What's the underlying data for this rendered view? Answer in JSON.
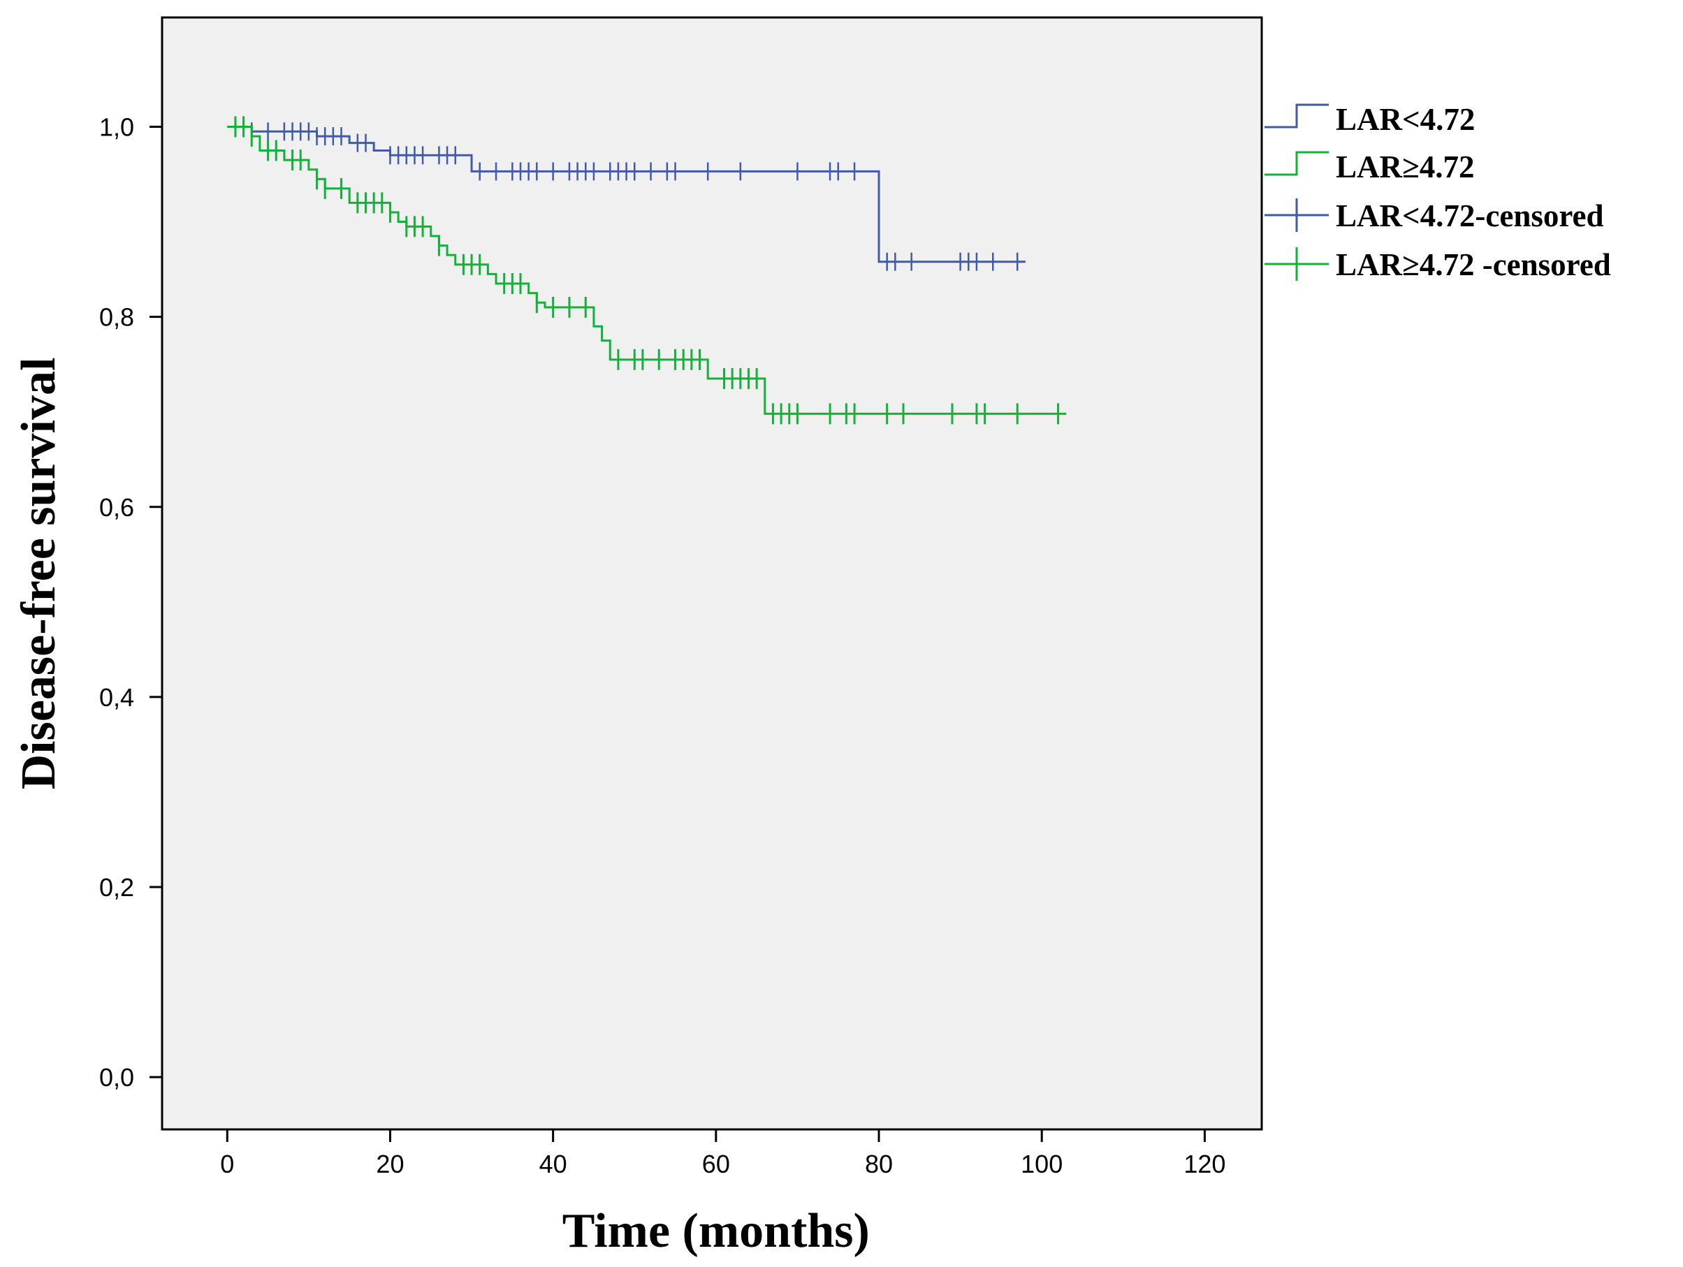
{
  "chart_data": {
    "type": "line",
    "subtype": "kaplan-meier",
    "title": "",
    "xlabel": "Time (months)",
    "ylabel": "Disease-free survival",
    "xlim": [
      -8,
      127
    ],
    "ylim": [
      -0.055,
      1.115
    ],
    "x_ticks": [
      0,
      20,
      40,
      60,
      80,
      100,
      120
    ],
    "x_tick_labels": [
      "0",
      "20",
      "40",
      "60",
      "80",
      "100",
      "120"
    ],
    "y_ticks": [
      0.0,
      0.2,
      0.4,
      0.6,
      0.8,
      1.0
    ],
    "y_tick_labels": [
      "0,0",
      "0,2",
      "0,4",
      "0,6",
      "0,8",
      "1,0"
    ],
    "grid": false,
    "legend_position": "right",
    "plot_background": "#f0f0f0",
    "series": [
      {
        "name": "LAR<4.72",
        "censored_name": "LAR<4.72-censored",
        "color": "#3f5aaa",
        "steps": [
          {
            "x": 0,
            "y": 1.0
          },
          {
            "x": 3,
            "y": 0.995
          },
          {
            "x": 11,
            "y": 0.99
          },
          {
            "x": 15,
            "y": 0.983
          },
          {
            "x": 18,
            "y": 0.975
          },
          {
            "x": 20,
            "y": 0.97
          },
          {
            "x": 30,
            "y": 0.953
          },
          {
            "x": 80,
            "y": 0.858
          }
        ],
        "end_x": 98,
        "censored_x": [
          1,
          2,
          3,
          5,
          7,
          8,
          9,
          10,
          11,
          12,
          13,
          14,
          16,
          17,
          20,
          21,
          22,
          23,
          24,
          26,
          27,
          28,
          31,
          33,
          35,
          36,
          37,
          38,
          40,
          42,
          43,
          44,
          45,
          47,
          48,
          49,
          50,
          52,
          54,
          55,
          59,
          63,
          70,
          74,
          75,
          77,
          81,
          82,
          84,
          90,
          91,
          92,
          94,
          97
        ]
      },
      {
        "name": "LAR≥4.72",
        "censored_name": "LAR≥4.72 -censored",
        "color": "#12b23a",
        "steps": [
          {
            "x": 0,
            "y": 1.0
          },
          {
            "x": 3,
            "y": 0.99
          },
          {
            "x": 4,
            "y": 0.975
          },
          {
            "x": 7,
            "y": 0.965
          },
          {
            "x": 10,
            "y": 0.955
          },
          {
            "x": 11,
            "y": 0.945
          },
          {
            "x": 12,
            "y": 0.935
          },
          {
            "x": 15,
            "y": 0.92
          },
          {
            "x": 20,
            "y": 0.91
          },
          {
            "x": 21,
            "y": 0.9
          },
          {
            "x": 22,
            "y": 0.895
          },
          {
            "x": 25,
            "y": 0.885
          },
          {
            "x": 26,
            "y": 0.875
          },
          {
            "x": 27,
            "y": 0.865
          },
          {
            "x": 28,
            "y": 0.855
          },
          {
            "x": 32,
            "y": 0.845
          },
          {
            "x": 33,
            "y": 0.835
          },
          {
            "x": 37,
            "y": 0.825
          },
          {
            "x": 38,
            "y": 0.815
          },
          {
            "x": 39,
            "y": 0.81
          },
          {
            "x": 45,
            "y": 0.79
          },
          {
            "x": 46,
            "y": 0.775
          },
          {
            "x": 47,
            "y": 0.755
          },
          {
            "x": 59,
            "y": 0.735
          },
          {
            "x": 66,
            "y": 0.698
          }
        ],
        "end_x": 103,
        "censored_x": [
          1,
          2,
          3,
          5,
          6,
          8,
          9,
          11,
          12,
          14,
          16,
          17,
          18,
          19,
          20,
          22,
          23,
          24,
          26,
          29,
          30,
          31,
          34,
          35,
          36,
          38,
          40,
          42,
          44,
          48,
          50,
          51,
          53,
          55,
          56,
          57,
          58,
          61,
          62,
          63,
          64,
          65,
          67,
          68,
          69,
          70,
          74,
          76,
          77,
          81,
          83,
          89,
          92,
          93,
          97,
          102
        ]
      }
    ]
  }
}
